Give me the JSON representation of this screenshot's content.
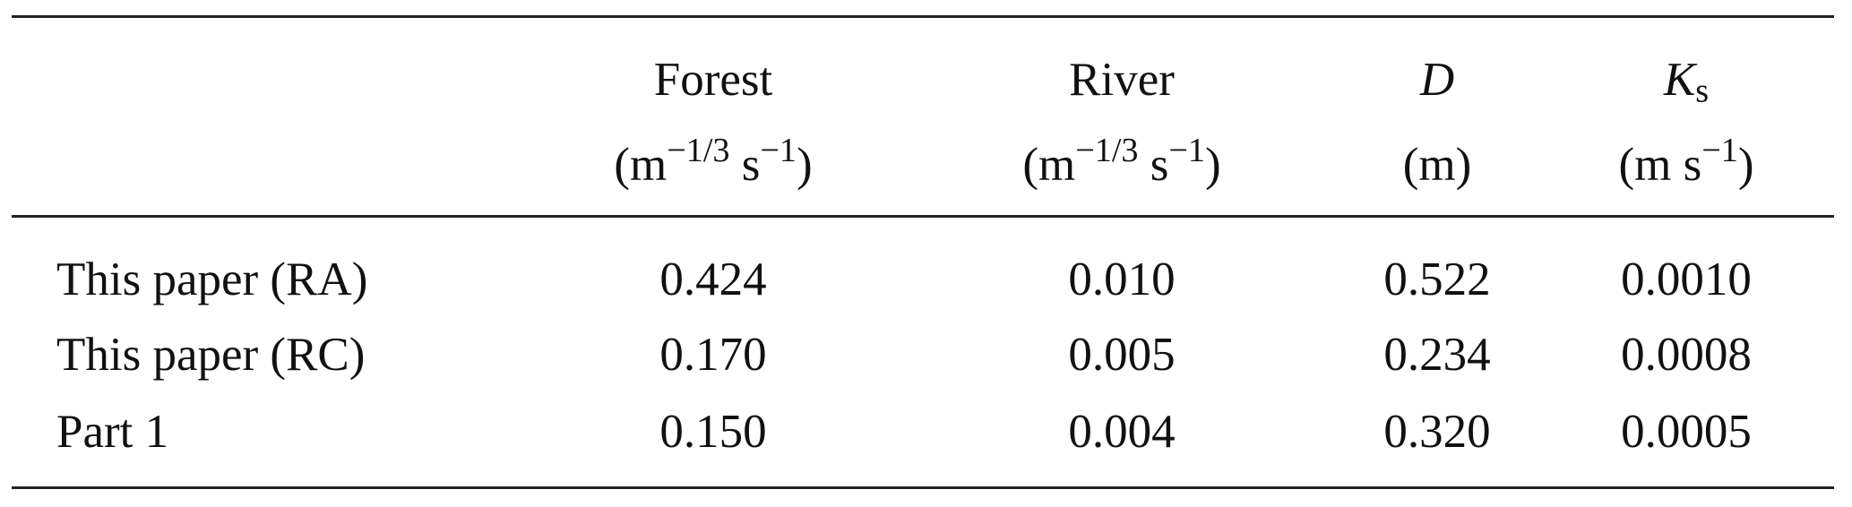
{
  "table": {
    "columns": [
      {
        "name": "Forest",
        "unit": [
          "(m",
          {
            "sup": "−1/3"
          },
          " s",
          {
            "sup": "−1"
          },
          ")"
        ]
      },
      {
        "name": "River",
        "unit": [
          "(m",
          {
            "sup": "−1/3"
          },
          " s",
          {
            "sup": "−1"
          },
          ")"
        ]
      },
      {
        "name": "D",
        "italic": true,
        "unit": [
          "(m)"
        ]
      },
      {
        "name": "K",
        "sub": "s",
        "italic": true,
        "unit": [
          "(m s",
          {
            "sup": "−1"
          },
          ")"
        ]
      }
    ],
    "rows": [
      [
        "This paper (RA)",
        "0.424",
        "0.010",
        "0.522",
        "0.0010"
      ],
      [
        "This paper (RC)",
        "0.170",
        "0.005",
        "0.234",
        "0.0008"
      ],
      [
        "Part 1",
        "0.150",
        "0.004",
        "0.320",
        "0.0005"
      ]
    ]
  }
}
